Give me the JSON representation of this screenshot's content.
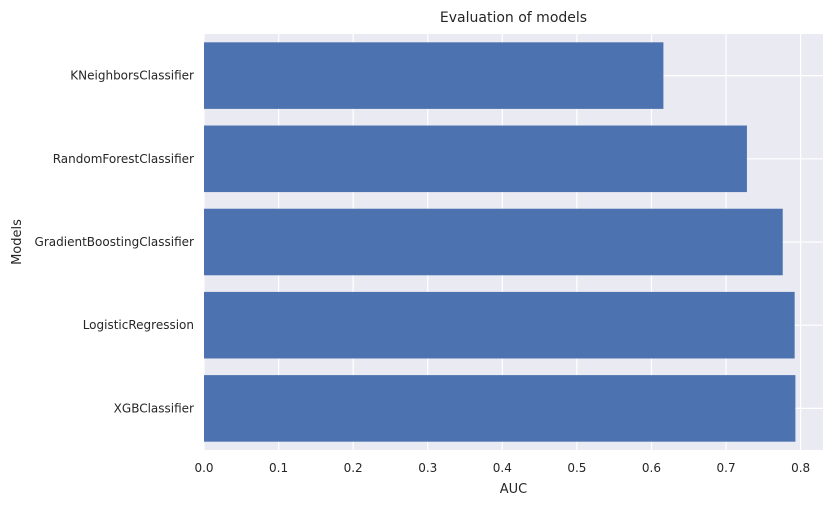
{
  "chart_data": {
    "type": "bar",
    "orientation": "horizontal",
    "title": "Evaluation of models",
    "xlabel": "AUC",
    "ylabel": "Models",
    "categories": [
      "KNeighborsClassifier",
      "RandomForestClassifier",
      "GradientBoostingClassifier",
      "LogisticRegression",
      "XGBClassifier"
    ],
    "values": [
      0.616,
      0.728,
      0.776,
      0.792,
      0.793
    ],
    "xlim": [
      0,
      0.83
    ],
    "xticks": [
      0.0,
      0.1,
      0.2,
      0.3,
      0.4,
      0.5,
      0.6,
      0.7,
      0.8
    ],
    "xtick_labels": [
      "0.0",
      "0.1",
      "0.2",
      "0.3",
      "0.4",
      "0.5",
      "0.6",
      "0.7",
      "0.8"
    ],
    "grid": true,
    "colors": {
      "bar": "#4c72b0",
      "background": "#eaeaf2",
      "grid": "#ffffff",
      "text": "#262626"
    }
  }
}
